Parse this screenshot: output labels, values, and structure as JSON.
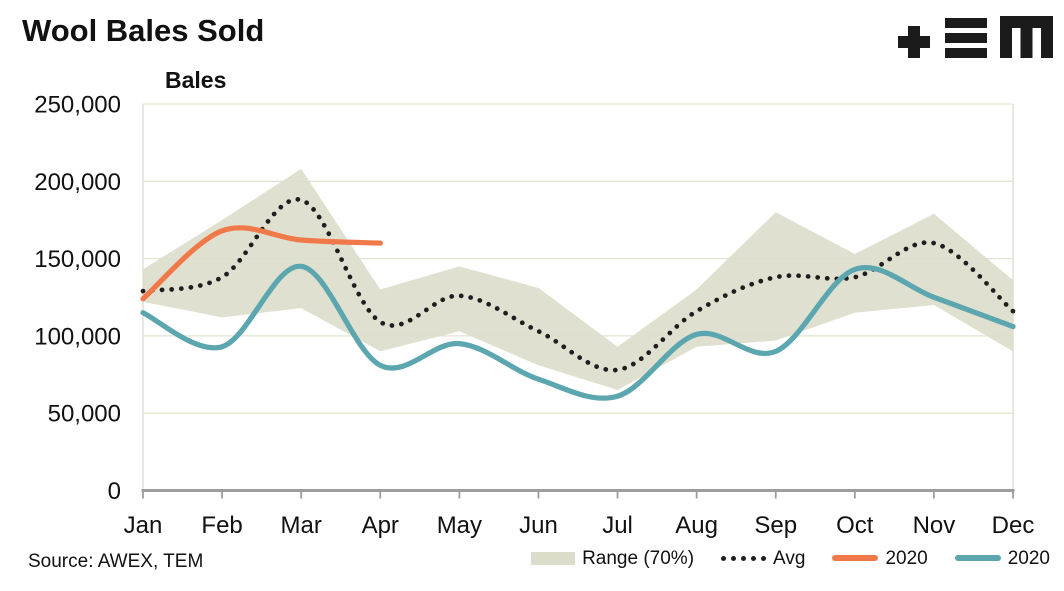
{
  "title": "Wool Bales Sold",
  "y_unit_label": "Bales",
  "source": "Source: AWEX, TEM",
  "logo_name": "tem-logo",
  "colors": {
    "band": "#DBDDCA",
    "avg": "#1E1E1E",
    "orange_2020": "#F0794A",
    "teal_2020": "#5BA6AF",
    "gridline": "#E3E4D5",
    "plot_border": "#DBDCD0",
    "axis": "#9D9D9D",
    "text": "#111111",
    "logo": "#1B1B1B"
  },
  "chart_data": {
    "type": "line",
    "title": "Wool Bales Sold",
    "xlabel": "",
    "ylabel": "Bales",
    "categories": [
      "Jan",
      "Feb",
      "Mar",
      "Apr",
      "May",
      "Jun",
      "Jul",
      "Aug",
      "Sep",
      "Oct",
      "Nov",
      "Dec"
    ],
    "ylim": [
      0,
      250000
    ],
    "grid": true,
    "legend_position": "bottom",
    "y_ticks": [
      {
        "value": 0,
        "label": "0"
      },
      {
        "value": 50000,
        "label": "50,000"
      },
      {
        "value": 100000,
        "label": "100,000"
      },
      {
        "value": 150000,
        "label": "150,000"
      },
      {
        "value": 200000,
        "label": "200,000"
      },
      {
        "value": 250000,
        "label": "250,000"
      }
    ],
    "series": [
      {
        "name": "Range (70%)",
        "type": "band",
        "color": "#DBDDCA",
        "upper": [
          143000,
          175000,
          208000,
          130000,
          145000,
          131000,
          93000,
          130000,
          180000,
          153000,
          179000,
          136000
        ],
        "lower": [
          122000,
          112000,
          118000,
          90000,
          103000,
          81000,
          65000,
          93000,
          97000,
          115000,
          120000,
          90000
        ]
      },
      {
        "name": "Avg",
        "type": "line",
        "style": "dotted",
        "color": "#1E1E1E",
        "values": [
          129000,
          138000,
          188000,
          109000,
          126000,
          103000,
          78000,
          116000,
          138000,
          138000,
          160000,
          116000
        ]
      },
      {
        "name": "2020",
        "type": "line",
        "style": "solid",
        "color": "#F0794A",
        "values": [
          124000,
          168000,
          162000,
          160000,
          null,
          null,
          null,
          null,
          null,
          null,
          null,
          null
        ]
      },
      {
        "name": "2020",
        "type": "line",
        "style": "solid",
        "color": "#5BA6AF",
        "values": [
          115000,
          93000,
          145000,
          81000,
          95000,
          72000,
          61000,
          101000,
          90000,
          143000,
          125000,
          106000
        ]
      }
    ]
  },
  "legend": {
    "items": [
      {
        "label": "Range (70%)",
        "swatch": "band",
        "color": "#DBDDCA"
      },
      {
        "label": "Avg",
        "swatch": "dotted",
        "color": "#1E1E1E"
      },
      {
        "label": "2020",
        "swatch": "line",
        "color": "#F0794A"
      },
      {
        "label": "2020",
        "swatch": "line",
        "color": "#5BA6AF"
      }
    ]
  }
}
